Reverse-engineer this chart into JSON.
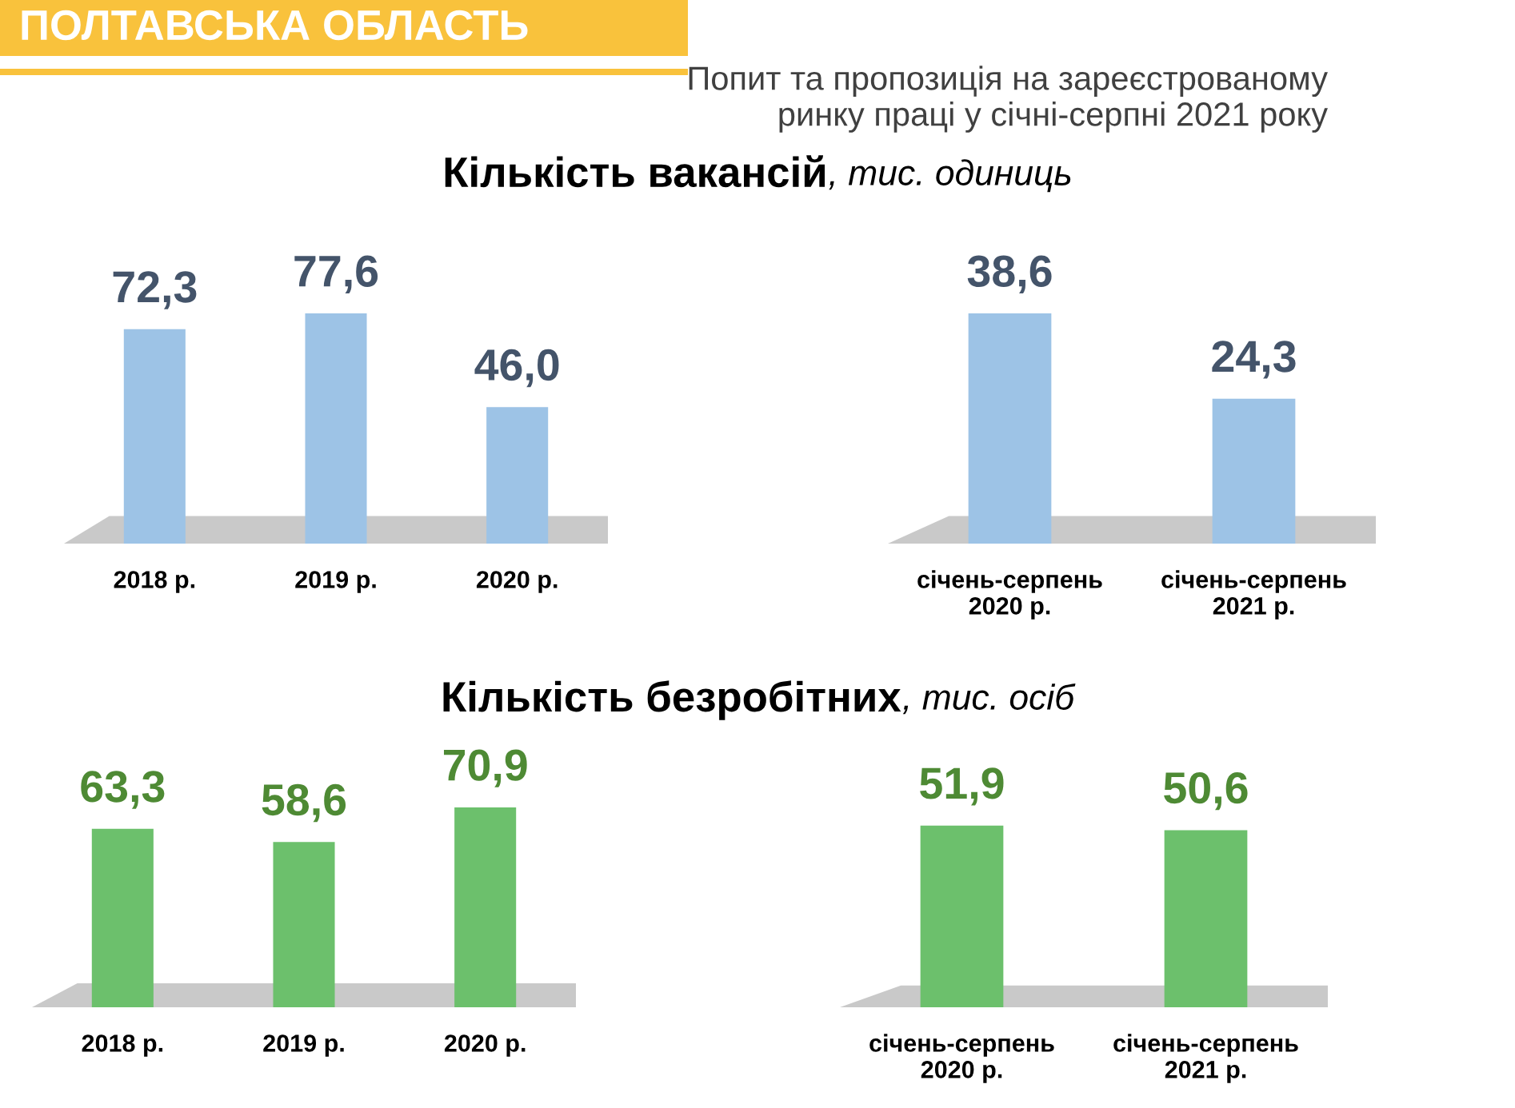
{
  "chart_data": [
    {
      "type": "bar",
      "title": "Кількість вакансій",
      "annotations": [
        "ПОЛТАВСЬКА ОБЛАСТЬ",
        "Попит та пропозиція на зареєстрованому\nринку праці у січні-серпні 2021 року"
      ],
      "categories": [
        "2018 р.",
        "2019 р.",
        "2020 р."
      ],
      "values": [
        72.3,
        77.6,
        46.0
      ],
      "value_labels": [
        "72,3",
        "77,6",
        "46,0"
      ],
      "color": "#9dc3e6",
      "tick_labels": "x"
    },
    {
      "type": "bar",
      "subtitle": ", тис. одиниць",
      "categories": [
        "січень-серпень\n2020 р.",
        "січень-серпень\n2021 р."
      ],
      "values": [
        38.6,
        24.3
      ],
      "value_labels": [
        "38,6",
        "24,3"
      ],
      "color": "#9dc3e6",
      "tick_labels": "x"
    },
    {
      "type": "bar",
      "title": "Кількість безробітних",
      "categories": [
        "2018 р.",
        "2019 р.",
        "2020 р."
      ],
      "values": [
        63.3,
        58.6,
        70.9
      ],
      "value_labels": [
        "63,3",
        "58,6",
        "70,9"
      ],
      "color": "#6cc06c",
      "tick_labels": "x"
    },
    {
      "type": "bar",
      "subtitle": ", тис. осіб",
      "categories": [
        "січень-серпень\n2020 р.",
        "січень-серпень\n2021 р."
      ],
      "values": [
        51.9,
        50.6
      ],
      "value_labels": [
        "51,9",
        "50,6"
      ],
      "color": "#6cc06c",
      "tick_labels": "x"
    }
  ]
}
